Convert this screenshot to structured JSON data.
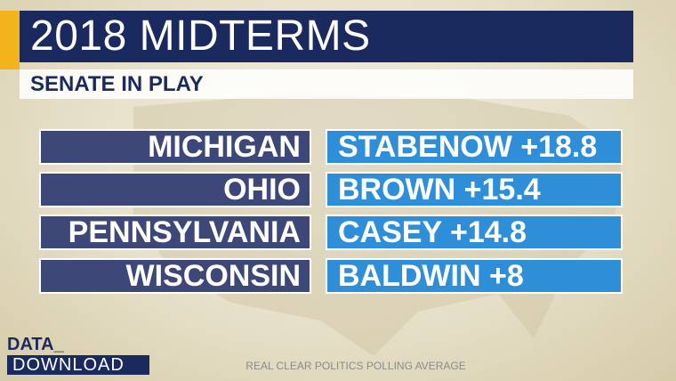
{
  "header": {
    "title": "2018 MIDTERMS",
    "subtitle": "SENATE IN PLAY"
  },
  "table": {
    "rows": [
      [
        "MICHIGAN",
        "STABENOW +18.8"
      ],
      [
        "OHIO",
        "BROWN +15.4"
      ],
      [
        "PENNSYLVANIA",
        "CASEY +14.8"
      ],
      [
        "WISCONSIN",
        "BALDWIN +8"
      ]
    ]
  },
  "footer": {
    "logo_top": "DATA_",
    "logo_bottom": "DOWNLOAD",
    "source": "REAL CLEAR POLITICS POLLING AVERAGE"
  }
}
